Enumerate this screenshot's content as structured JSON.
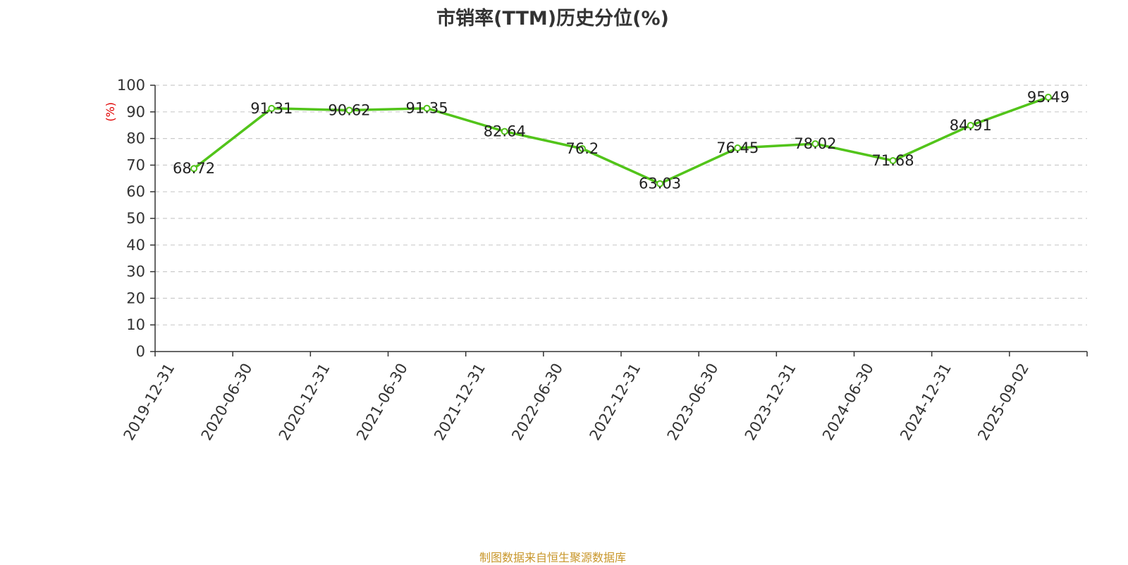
{
  "title": "市销率(TTM)历史分位(%)",
  "source": "制图数据来自恒生聚源数据库",
  "colors": {
    "line": "#52c41a",
    "title": "#333333",
    "ylabel": "#e00000",
    "source": "#c8962a",
    "grid": "#cccccc"
  },
  "chart_data": {
    "type": "line",
    "title": "市销率(TTM)历史分位(%)",
    "xlabel": "",
    "ylabel": "(%)",
    "ylim": [
      0,
      100
    ],
    "yticks": [
      0,
      10,
      20,
      30,
      40,
      50,
      60,
      70,
      80,
      90,
      100
    ],
    "grid": true,
    "legend": "none",
    "categories": [
      "2019-12-31",
      "2020-06-30",
      "2020-12-31",
      "2021-06-30",
      "2021-12-31",
      "2022-06-30",
      "2022-12-31",
      "2023-06-30",
      "2023-12-31",
      "2024-06-30",
      "2024-12-31",
      "2025-09-02"
    ],
    "values": [
      68.72,
      91.31,
      90.62,
      91.35,
      82.64,
      76.2,
      63.03,
      76.45,
      78.02,
      71.68,
      84.91,
      95.49
    ],
    "data_labels": [
      "68.72",
      "91.31",
      "90.62",
      "91.35",
      "82.64",
      "76.2",
      "63.03",
      "76.45",
      "78.02",
      "71.68",
      "84.91",
      "95.49"
    ]
  }
}
